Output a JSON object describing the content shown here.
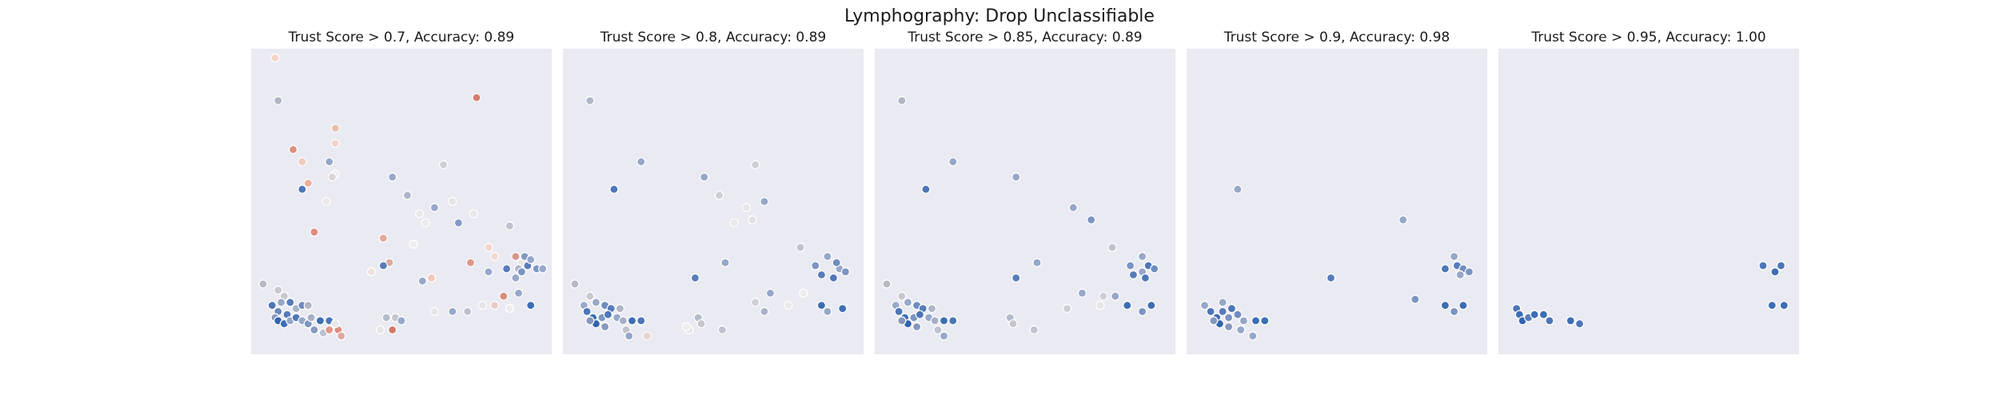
{
  "figure": {
    "title": "Lymphography: Drop Unclassifiable"
  },
  "chart_data": [
    {
      "type": "scatter",
      "title": "Trust Score > 0.7, Accuracy: 0.89",
      "xlim": [
        0,
        10
      ],
      "ylim": [
        0,
        10
      ],
      "points": [
        [
          0.8,
          9.7,
          "rgb(247,212,200)"
        ],
        [
          0.9,
          8.3,
          "rgb(177,182,196)"
        ],
        [
          1.4,
          6.7,
          "rgb(221,143,128)"
        ],
        [
          1.7,
          6.3,
          "rgb(240,200,188)"
        ],
        [
          1.9,
          5.6,
          "rgb(236,175,160)"
        ],
        [
          1.7,
          5.4,
          "rgb(77,118,184)"
        ],
        [
          2.5,
          5.0,
          "rgb(237,232,232)"
        ],
        [
          2.1,
          4.0,
          "rgb(222,140,125)"
        ],
        [
          2.8,
          5.9,
          "rgb(239,239,240)"
        ],
        [
          2.6,
          6.3,
          "rgb(150,167,201)"
        ],
        [
          2.8,
          6.9,
          "rgb(240,212,204)"
        ],
        [
          2.8,
          7.4,
          "rgb(232,189,176)"
        ],
        [
          2.7,
          5.8,
          "rgb(220,214,216)"
        ],
        [
          7.5,
          8.4,
          "rgb(214,125,110)"
        ],
        [
          4.7,
          5.8,
          "rgb(150,167,201)"
        ],
        [
          5.2,
          5.2,
          "rgb(171,180,203)"
        ],
        [
          5.6,
          4.6,
          "rgb(234,233,234)"
        ],
        [
          6.1,
          4.8,
          "rgb(150,167,201)"
        ],
        [
          5.8,
          4.3,
          "rgb(235,235,237)"
        ],
        [
          6.9,
          4.3,
          "rgb(130,154,198)"
        ],
        [
          6.4,
          6.2,
          "rgb(205,207,214)"
        ],
        [
          6.7,
          5.0,
          "rgb(229,229,231)"
        ],
        [
          4.4,
          3.8,
          "rgb(225,170,157)"
        ],
        [
          4.6,
          3.0,
          "rgb(218,170,160)"
        ],
        [
          4.4,
          2.9,
          "rgb(88,124,186)"
        ],
        [
          4.0,
          2.7,
          "rgb(240,226,220)"
        ],
        [
          5.4,
          3.6,
          "rgb(238,238,239)"
        ],
        [
          5.7,
          2.4,
          "rgb(150,167,201)"
        ],
        [
          6.0,
          2.5,
          "rgb(240,200,188)"
        ],
        [
          7.4,
          4.6,
          "rgb(232,232,234)"
        ],
        [
          7.3,
          3.0,
          "rgb(222,152,138)"
        ],
        [
          7.9,
          3.5,
          "rgb(243,213,203)"
        ],
        [
          8.6,
          4.2,
          "rgb(190,194,206)"
        ],
        [
          8.8,
          3.2,
          "rgb(215,151,140)"
        ],
        [
          8.1,
          3.2,
          "rgb(240,218,210)"
        ],
        [
          7.9,
          2.7,
          "rgb(150,167,201)"
        ],
        [
          9.0,
          3.0,
          "rgb(235,230,230)"
        ],
        [
          6.1,
          1.4,
          "rgb(230,230,233)"
        ],
        [
          6.7,
          1.4,
          "rgb(150,167,201)"
        ],
        [
          7.2,
          1.4,
          "rgb(190,194,206)"
        ],
        [
          7.7,
          1.6,
          "rgb(229,229,231)"
        ],
        [
          8.1,
          1.6,
          "rgb(231,204,197)"
        ],
        [
          8.4,
          1.9,
          "rgb(215,140,125)"
        ],
        [
          8.6,
          1.5,
          "rgb(236,236,237)"
        ],
        [
          9.3,
          1.6,
          "rgb(60,110,180)"
        ],
        [
          8.9,
          2.0,
          "rgb(150,167,201)"
        ],
        [
          8.5,
          2.8,
          "rgb(88,124,186)"
        ],
        [
          8.9,
          2.8,
          "rgb(170,178,198)"
        ],
        [
          9.0,
          2.7,
          "rgb(123,148,194)"
        ],
        [
          8.8,
          2.5,
          "rgb(150,167,201)"
        ],
        [
          4.5,
          1.2,
          "rgb(180,187,201)"
        ],
        [
          4.8,
          1.2,
          "rgb(198,196,206)"
        ],
        [
          5.0,
          1.1,
          "rgb(150,167,201)"
        ],
        [
          4.3,
          0.8,
          "rgb(230,230,232)"
        ],
        [
          4.7,
          0.8,
          "rgb(214,120,104)"
        ],
        [
          0.4,
          2.3,
          "rgb(182,185,197)"
        ],
        [
          0.9,
          2.1,
          "rgb(200,200,208)"
        ],
        [
          1.1,
          1.9,
          "rgb(199,199,206)"
        ],
        [
          1.5,
          1.5,
          "rgb(170,178,198)"
        ],
        [
          0.7,
          1.6,
          "rgb(77,118,184)"
        ],
        [
          0.9,
          1.4,
          "rgb(107,135,190)"
        ],
        [
          1.2,
          1.3,
          "rgb(88,124,186)"
        ],
        [
          0.8,
          1.2,
          "rgb(134,152,190)"
        ],
        [
          0.9,
          1.1,
          "rgb(50,100,175)"
        ],
        [
          1.1,
          1.0,
          "rgb(60,110,180)"
        ],
        [
          1.3,
          1.1,
          "rgb(150,167,201)"
        ],
        [
          1.5,
          1.2,
          "rgb(77,118,184)"
        ],
        [
          1.7,
          1.1,
          "rgb(150,167,201)"
        ],
        [
          1.9,
          1.0,
          "rgb(123,148,194)"
        ],
        [
          2.0,
          1.2,
          "rgb(167,176,200)"
        ],
        [
          2.3,
          1.1,
          "rgb(60,110,180)"
        ],
        [
          2.6,
          1.1,
          "rgb(77,118,184)"
        ],
        [
          2.1,
          0.8,
          "rgb(134,152,190)"
        ],
        [
          2.4,
          0.7,
          "rgb(190,194,206)"
        ],
        [
          2.6,
          0.8,
          "rgb(225,150,136)"
        ],
        [
          2.9,
          0.8,
          "rgb(222,140,125)"
        ],
        [
          3.0,
          0.6,
          "rgb(220,170,160)"
        ],
        [
          2.8,
          1.0,
          "rgb(232,232,234)"
        ],
        [
          1.0,
          1.7,
          "rgb(150,167,201)"
        ],
        [
          1.3,
          1.7,
          "rgb(88,124,186)"
        ],
        [
          1.7,
          1.6,
          "rgb(110,140,191)"
        ],
        [
          1.9,
          1.6,
          "rgb(177,182,196)"
        ],
        [
          9.2,
          2.9,
          "rgb(88,124,186)"
        ],
        [
          9.5,
          2.8,
          "rgb(123,148,194)"
        ],
        [
          9.7,
          2.8,
          "rgb(150,167,201)"
        ],
        [
          9.1,
          3.2,
          "rgb(134,152,190)"
        ],
        [
          9.3,
          3.1,
          "rgb(150,167,201)"
        ]
      ]
    },
    {
      "type": "scatter",
      "title": "Trust Score > 0.8, Accuracy: 0.89",
      "xlim": [
        0,
        10
      ],
      "ylim": [
        0,
        10
      ],
      "points": [
        [
          0.9,
          8.3,
          "rgb(177,182,196)"
        ],
        [
          2.6,
          6.3,
          "rgb(150,167,201)"
        ],
        [
          1.7,
          5.4,
          "rgb(77,118,184)"
        ],
        [
          4.7,
          5.8,
          "rgb(150,167,201)"
        ],
        [
          5.2,
          5.2,
          "rgb(205,207,214)"
        ],
        [
          6.4,
          6.2,
          "rgb(205,207,214)"
        ],
        [
          6.7,
          5.0,
          "rgb(150,167,201)"
        ],
        [
          6.1,
          4.8,
          "rgb(230,230,232)"
        ],
        [
          5.7,
          4.3,
          "rgb(232,232,234)"
        ],
        [
          6.3,
          4.4,
          "rgb(226,226,229)"
        ],
        [
          7.9,
          3.5,
          "rgb(190,194,206)"
        ],
        [
          4.4,
          2.5,
          "rgb(88,124,186)"
        ],
        [
          5.4,
          3.0,
          "rgb(150,167,201)"
        ],
        [
          6.9,
          2.0,
          "rgb(150,167,201)"
        ],
        [
          6.7,
          1.4,
          "rgb(170,178,198)"
        ],
        [
          6.4,
          1.7,
          "rgb(205,207,214)"
        ],
        [
          8.0,
          2.0,
          "rgb(236,236,237)"
        ],
        [
          7.5,
          1.6,
          "rgb(234,234,236)"
        ],
        [
          8.6,
          1.6,
          "rgb(60,110,180)"
        ],
        [
          8.6,
          2.6,
          "rgb(88,124,186)"
        ],
        [
          8.4,
          2.9,
          "rgb(123,148,194)"
        ],
        [
          9.2,
          2.8,
          "rgb(150,167,201)"
        ],
        [
          9.0,
          2.5,
          "rgb(77,118,184)"
        ],
        [
          9.4,
          2.7,
          "rgb(123,148,194)"
        ],
        [
          8.8,
          3.2,
          "rgb(150,167,201)"
        ],
        [
          9.1,
          3.0,
          "rgb(110,140,191)"
        ],
        [
          9.3,
          1.5,
          "rgb(60,110,180)"
        ],
        [
          8.8,
          1.4,
          "rgb(150,167,201)"
        ],
        [
          4.5,
          1.2,
          "rgb(180,187,201)"
        ],
        [
          4.6,
          1.0,
          "rgb(198,196,206)"
        ],
        [
          4.2,
          0.8,
          "rgb(230,230,232)"
        ],
        [
          5.3,
          0.8,
          "rgb(190,194,206)"
        ],
        [
          4.1,
          0.9,
          "rgb(238,238,239)"
        ],
        [
          0.4,
          2.3,
          "rgb(182,185,197)"
        ],
        [
          0.9,
          1.9,
          "rgb(200,200,208)"
        ],
        [
          0.7,
          1.6,
          "rgb(150,167,201)"
        ],
        [
          1.1,
          1.7,
          "rgb(150,167,201)"
        ],
        [
          1.4,
          1.6,
          "rgb(110,140,191)"
        ],
        [
          1.6,
          1.5,
          "rgb(88,124,186)"
        ],
        [
          0.8,
          1.4,
          "rgb(77,118,184)"
        ],
        [
          1.0,
          1.2,
          "rgb(60,110,180)"
        ],
        [
          1.3,
          1.2,
          "rgb(123,148,194)"
        ],
        [
          1.5,
          1.3,
          "rgb(77,118,184)"
        ],
        [
          1.8,
          1.2,
          "rgb(150,167,201)"
        ],
        [
          2.0,
          1.1,
          "rgb(167,176,200)"
        ],
        [
          2.3,
          1.1,
          "rgb(60,110,180)"
        ],
        [
          2.6,
          1.1,
          "rgb(77,118,184)"
        ],
        [
          1.1,
          1.0,
          "rgb(50,100,175)"
        ],
        [
          1.4,
          0.9,
          "rgb(134,152,190)"
        ],
        [
          2.1,
          0.8,
          "rgb(190,194,206)"
        ],
        [
          2.2,
          0.6,
          "rgb(150,167,201)"
        ],
        [
          2.8,
          0.6,
          "rgb(230,210,206)"
        ],
        [
          0.9,
          1.1,
          "rgb(134,152,190)"
        ],
        [
          1.9,
          1.5,
          "rgb(177,182,196)"
        ]
      ]
    },
    {
      "type": "scatter",
      "title": "Trust Score > 0.85, Accuracy: 0.89",
      "xlim": [
        0,
        10
      ],
      "ylim": [
        0,
        10
      ],
      "points": [
        [
          0.9,
          8.3,
          "rgb(177,182,196)"
        ],
        [
          2.6,
          6.3,
          "rgb(150,167,201)"
        ],
        [
          1.7,
          5.4,
          "rgb(77,118,184)"
        ],
        [
          4.7,
          5.8,
          "rgb(150,167,201)"
        ],
        [
          6.6,
          4.8,
          "rgb(150,167,201)"
        ],
        [
          7.2,
          4.4,
          "rgb(123,148,194)"
        ],
        [
          7.9,
          3.5,
          "rgb(190,194,206)"
        ],
        [
          5.4,
          3.0,
          "rgb(150,167,201)"
        ],
        [
          4.7,
          2.5,
          "rgb(88,124,186)"
        ],
        [
          6.9,
          2.0,
          "rgb(150,167,201)"
        ],
        [
          6.4,
          1.5,
          "rgb(205,207,214)"
        ],
        [
          7.5,
          1.6,
          "rgb(230,230,232)"
        ],
        [
          8.0,
          1.9,
          "rgb(150,167,201)"
        ],
        [
          7.6,
          1.9,
          "rgb(205,207,214)"
        ],
        [
          8.4,
          1.6,
          "rgb(60,110,180)"
        ],
        [
          9.2,
          1.6,
          "rgb(60,110,180)"
        ],
        [
          8.9,
          1.4,
          "rgb(123,148,194)"
        ],
        [
          8.6,
          2.6,
          "rgb(88,124,186)"
        ],
        [
          8.5,
          2.9,
          "rgb(123,148,194)"
        ],
        [
          8.9,
          2.7,
          "rgb(150,167,201)"
        ],
        [
          9.1,
          2.9,
          "rgb(77,118,184)"
        ],
        [
          9.3,
          2.8,
          "rgb(110,140,191)"
        ],
        [
          8.9,
          3.2,
          "rgb(150,167,201)"
        ],
        [
          9.0,
          2.5,
          "rgb(77,118,184)"
        ],
        [
          4.5,
          1.2,
          "rgb(180,187,201)"
        ],
        [
          4.6,
          1.0,
          "rgb(198,196,206)"
        ],
        [
          5.3,
          0.8,
          "rgb(190,194,206)"
        ],
        [
          0.4,
          2.3,
          "rgb(182,185,197)"
        ],
        [
          0.9,
          1.9,
          "rgb(200,200,208)"
        ],
        [
          0.7,
          1.6,
          "rgb(150,167,201)"
        ],
        [
          1.1,
          1.7,
          "rgb(150,167,201)"
        ],
        [
          1.4,
          1.6,
          "rgb(110,140,191)"
        ],
        [
          1.6,
          1.5,
          "rgb(88,124,186)"
        ],
        [
          0.8,
          1.4,
          "rgb(77,118,184)"
        ],
        [
          1.0,
          1.2,
          "rgb(60,110,180)"
        ],
        [
          1.3,
          1.2,
          "rgb(123,148,194)"
        ],
        [
          1.5,
          1.3,
          "rgb(77,118,184)"
        ],
        [
          1.8,
          1.2,
          "rgb(150,167,201)"
        ],
        [
          2.0,
          1.1,
          "rgb(167,176,200)"
        ],
        [
          2.3,
          1.1,
          "rgb(60,110,180)"
        ],
        [
          2.6,
          1.1,
          "rgb(77,118,184)"
        ],
        [
          1.1,
          1.0,
          "rgb(50,100,175)"
        ],
        [
          1.4,
          0.9,
          "rgb(134,152,190)"
        ],
        [
          2.1,
          0.8,
          "rgb(190,194,206)"
        ],
        [
          2.3,
          0.6,
          "rgb(150,167,201)"
        ],
        [
          0.9,
          1.1,
          "rgb(134,152,190)"
        ],
        [
          1.9,
          1.5,
          "rgb(177,182,196)"
        ]
      ]
    },
    {
      "type": "scatter",
      "title": "Trust Score > 0.9, Accuracy: 0.98",
      "xlim": [
        0,
        10
      ],
      "ylim": [
        0,
        10
      ],
      "points": [
        [
          1.7,
          5.4,
          "rgb(150,167,201)"
        ],
        [
          7.2,
          4.4,
          "rgb(150,167,201)"
        ],
        [
          4.8,
          2.5,
          "rgb(88,124,186)"
        ],
        [
          7.6,
          1.8,
          "rgb(123,148,194)"
        ],
        [
          8.6,
          1.6,
          "rgb(60,110,180)"
        ],
        [
          9.2,
          1.6,
          "rgb(60,110,180)"
        ],
        [
          8.9,
          1.4,
          "rgb(123,148,194)"
        ],
        [
          8.6,
          2.8,
          "rgb(77,118,184)"
        ],
        [
          8.9,
          3.2,
          "rgb(150,167,201)"
        ],
        [
          9.0,
          2.9,
          "rgb(88,124,186)"
        ],
        [
          9.2,
          2.8,
          "rgb(110,140,191)"
        ],
        [
          9.4,
          2.7,
          "rgb(123,148,194)"
        ],
        [
          9.1,
          2.6,
          "rgb(150,167,201)"
        ],
        [
          0.6,
          1.6,
          "rgb(150,167,201)"
        ],
        [
          0.8,
          1.4,
          "rgb(77,118,184)"
        ],
        [
          1.0,
          1.2,
          "rgb(60,110,180)"
        ],
        [
          1.2,
          1.4,
          "rgb(88,124,186)"
        ],
        [
          1.4,
          1.2,
          "rgb(123,148,194)"
        ],
        [
          1.5,
          1.5,
          "rgb(77,118,184)"
        ],
        [
          1.7,
          1.3,
          "rgb(110,140,191)"
        ],
        [
          1.9,
          1.1,
          "rgb(150,167,201)"
        ],
        [
          2.3,
          1.1,
          "rgb(60,110,180)"
        ],
        [
          2.6,
          1.1,
          "rgb(60,110,180)"
        ],
        [
          1.1,
          1.0,
          "rgb(50,100,175)"
        ],
        [
          1.4,
          0.9,
          "rgb(134,152,190)"
        ],
        [
          1.8,
          0.8,
          "rgb(150,167,201)"
        ],
        [
          2.2,
          0.6,
          "rgb(150,167,201)"
        ],
        [
          0.9,
          1.1,
          "rgb(134,152,190)"
        ],
        [
          1.2,
          1.7,
          "rgb(150,167,201)"
        ]
      ]
    },
    {
      "type": "scatter",
      "title": "Trust Score > 0.95, Accuracy: 1.00",
      "xlim": [
        0,
        10
      ],
      "ylim": [
        0,
        10
      ],
      "points": [
        [
          0.6,
          1.5,
          "rgb(77,118,184)"
        ],
        [
          0.7,
          1.3,
          "rgb(60,110,180)"
        ],
        [
          0.8,
          1.1,
          "rgb(50,100,175)"
        ],
        [
          1.0,
          1.2,
          "rgb(88,124,186)"
        ],
        [
          1.2,
          1.3,
          "rgb(60,110,180)"
        ],
        [
          1.5,
          1.3,
          "rgb(60,110,180)"
        ],
        [
          1.7,
          1.1,
          "rgb(77,118,184)"
        ],
        [
          2.4,
          1.1,
          "rgb(60,110,180)"
        ],
        [
          2.7,
          1.0,
          "rgb(77,118,184)"
        ],
        [
          8.8,
          2.9,
          "rgb(77,118,184)"
        ],
        [
          9.2,
          2.7,
          "rgb(60,110,180)"
        ],
        [
          9.4,
          2.9,
          "rgb(77,118,184)"
        ],
        [
          9.1,
          1.6,
          "rgb(60,110,180)"
        ],
        [
          9.5,
          1.6,
          "rgb(60,110,180)"
        ]
      ]
    }
  ]
}
